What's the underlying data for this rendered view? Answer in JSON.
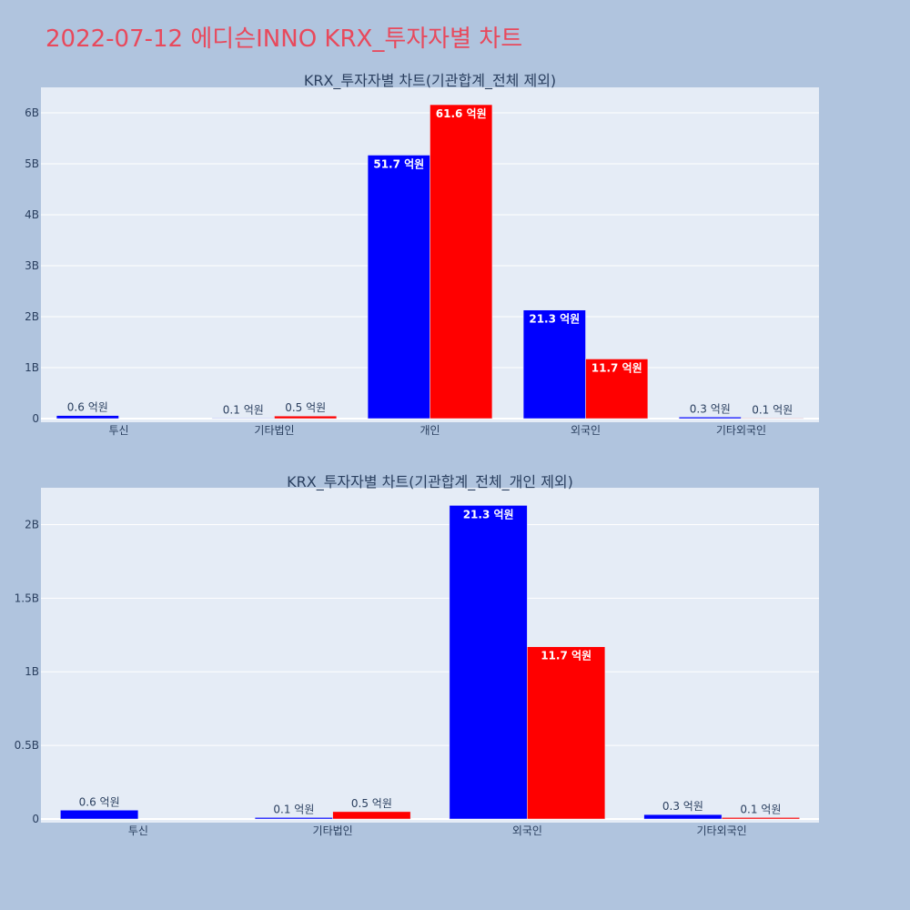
{
  "page_title": "2022-07-12 에디슨INNO KRX_투자자별 차트",
  "colors": {
    "buy": "#0000ff",
    "sell": "#ff0000",
    "plot_bg": "#e5ecf6",
    "page_bg": "#b0c4de",
    "title": "#e8495c"
  },
  "chart_data": [
    {
      "type": "bar",
      "title": "KRX_투자자별 차트(기관합계_전체 제외)",
      "categories": [
        "투신",
        "기타법인",
        "개인",
        "외국인",
        "기타외국인"
      ],
      "ylim": [
        0,
        6.5
      ],
      "yticks": [
        0,
        1,
        2,
        3,
        4,
        5,
        6
      ],
      "ytick_labels": [
        "0",
        "1B",
        "2B",
        "3B",
        "4B",
        "5B",
        "6B"
      ],
      "grid": true,
      "series": [
        {
          "color": "#0000ff",
          "values": [
            0.06,
            0.01,
            5.17,
            2.13,
            0.03
          ],
          "labels": [
            "0.6 억원",
            "0.1 억원",
            "51.7 억원",
            "21.3 억원",
            "0.3 억원"
          ]
        },
        {
          "color": "#ff0000",
          "values": [
            0.0,
            0.05,
            6.16,
            1.17,
            0.01
          ],
          "labels": [
            "",
            "0.5 억원",
            "61.6 억원",
            "11.7 억원",
            "0.1 억원"
          ]
        }
      ]
    },
    {
      "type": "bar",
      "title": "KRX_투자자별 차트(기관합계_전체_개인 제외)",
      "categories": [
        "투신",
        "기타법인",
        "외국인",
        "기타외국인"
      ],
      "ylim": [
        0,
        2.25
      ],
      "yticks": [
        0,
        0.5,
        1,
        1.5,
        2
      ],
      "ytick_labels": [
        "0",
        "0.5B",
        "1B",
        "1.5B",
        "2B"
      ],
      "grid": true,
      "series": [
        {
          "color": "#0000ff",
          "values": [
            0.06,
            0.01,
            2.13,
            0.03
          ],
          "labels": [
            "0.6 억원",
            "0.1 억원",
            "21.3 억원",
            "0.3 억원"
          ]
        },
        {
          "color": "#ff0000",
          "values": [
            0.0,
            0.05,
            1.17,
            0.01
          ],
          "labels": [
            "",
            "0.5 억원",
            "11.7 억원",
            "0.1 억원"
          ]
        }
      ]
    }
  ]
}
